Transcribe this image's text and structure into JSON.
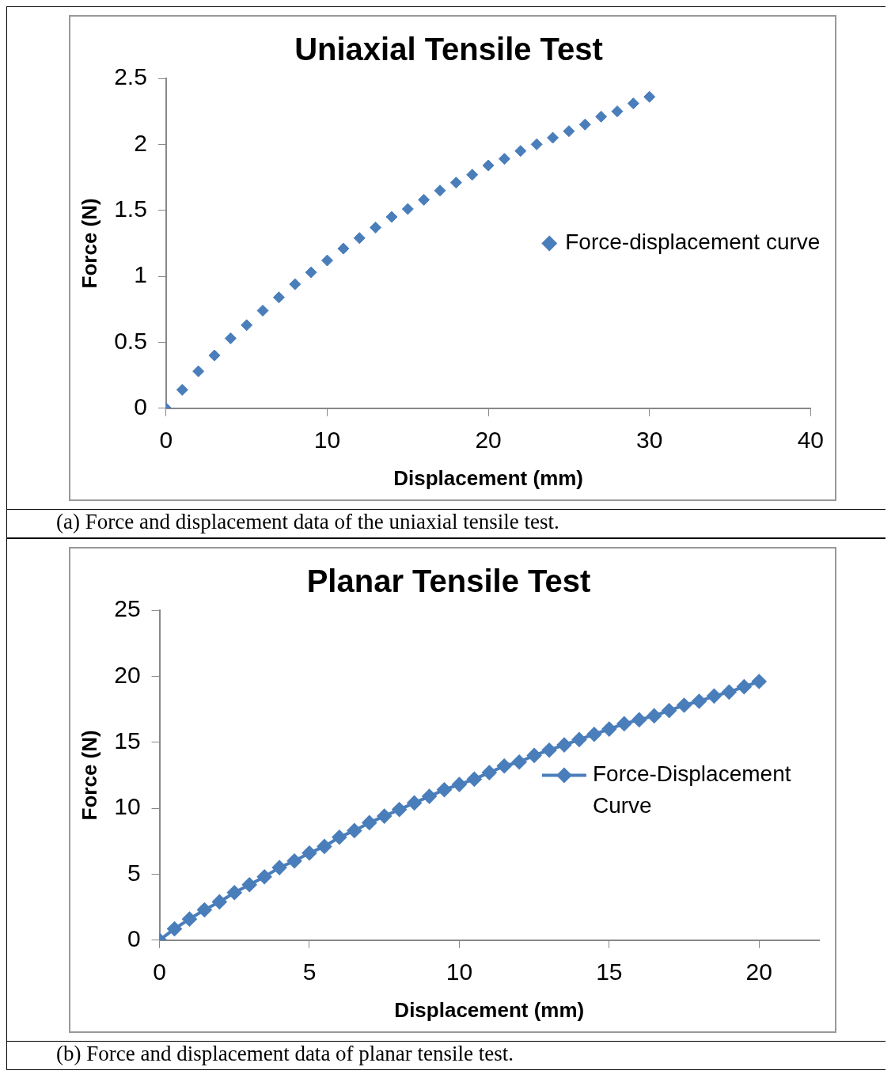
{
  "chart_data": [
    {
      "type": "scatter",
      "title": "Uniaxial Tensile Test",
      "xlabel": "Displacement (mm)",
      "ylabel": "Force (N)",
      "annotations": [
        "(a)  Force and displacement data of the uniaxial tensile test."
      ],
      "x": [
        0,
        1,
        2,
        3,
        4,
        5,
        6,
        7,
        8,
        9,
        10,
        11,
        12,
        13,
        14,
        15,
        16,
        17,
        18,
        19,
        20,
        21,
        22,
        23,
        24,
        25,
        26,
        27,
        28,
        29,
        30
      ],
      "series": [
        {
          "name": "Force-displacement curve",
          "color": "#4a7ebb",
          "values": [
            0,
            0.14,
            0.28,
            0.4,
            0.53,
            0.63,
            0.74,
            0.84,
            0.94,
            1.03,
            1.12,
            1.21,
            1.29,
            1.37,
            1.45,
            1.51,
            1.58,
            1.65,
            1.71,
            1.77,
            1.84,
            1.89,
            1.95,
            2.0,
            2.05,
            2.1,
            2.15,
            2.21,
            2.25,
            2.31,
            2.36
          ]
        }
      ],
      "xlim": [
        0,
        40
      ],
      "xticks": [
        0,
        10,
        20,
        30,
        40
      ],
      "ylim": [
        0,
        2.5
      ],
      "yticks": [
        0,
        0.5,
        1,
        1.5,
        2,
        2.5
      ],
      "grid": false,
      "legend": "right",
      "marker": "diamond"
    },
    {
      "type": "line",
      "title": "Planar Tensile Test",
      "xlabel": "Displacement (mm)",
      "ylabel": "Force (N)",
      "annotations": [
        "(b)  Force and displacement data of planar tensile test."
      ],
      "x": [
        0,
        0.5,
        1,
        1.5,
        2,
        2.5,
        3,
        3.5,
        4,
        4.5,
        5,
        5.5,
        6,
        6.5,
        7,
        7.5,
        8,
        8.5,
        9,
        9.5,
        10,
        10.5,
        11,
        11.5,
        12,
        12.5,
        13,
        13.5,
        14,
        14.5,
        15,
        15.5,
        16,
        16.5,
        17,
        17.5,
        18,
        18.5,
        19,
        19.5,
        20
      ],
      "series": [
        {
          "name": "Force-Displacement Curve",
          "color": "#4a7ebb",
          "values": [
            0,
            0.86,
            1.6,
            2.3,
            2.9,
            3.6,
            4.2,
            4.8,
            5.5,
            6.0,
            6.6,
            7.1,
            7.8,
            8.3,
            8.9,
            9.4,
            9.9,
            10.4,
            10.9,
            11.4,
            11.8,
            12.2,
            12.7,
            13.2,
            13.5,
            14.0,
            14.4,
            14.8,
            15.2,
            15.6,
            16.0,
            16.4,
            16.7,
            17.0,
            17.4,
            17.8,
            18.1,
            18.5,
            18.8,
            19.2,
            19.6
          ]
        }
      ],
      "xlim": [
        0,
        22
      ],
      "xticks": [
        0,
        5,
        10,
        15,
        20
      ],
      "ylim": [
        0,
        25
      ],
      "yticks": [
        0,
        5,
        10,
        15,
        20,
        25
      ],
      "grid": false,
      "legend": "right",
      "marker": "diamond"
    }
  ]
}
